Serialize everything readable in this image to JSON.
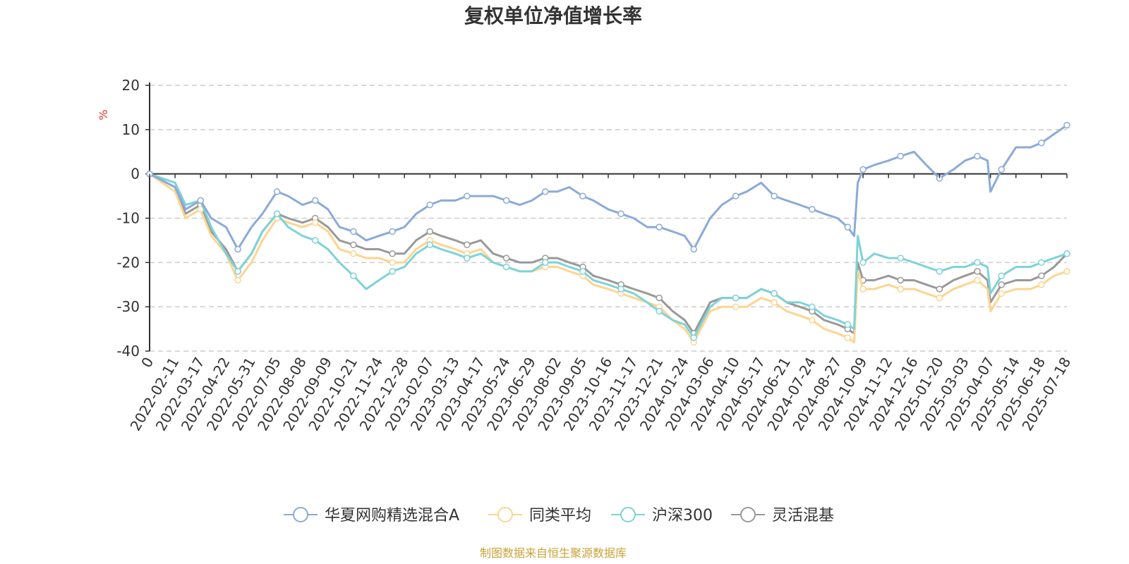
{
  "chart_data": {
    "type": "line",
    "title": "复权单位净值增长率",
    "ylabel": "%",
    "ylim": [
      -40,
      20
    ],
    "yticks": [
      20,
      10,
      0,
      -10,
      -20,
      -30,
      -40
    ],
    "grid": true,
    "legend_position": "bottom",
    "source": "制图数据来自恒生聚源数据库",
    "x_tick_labels": [
      "0",
      "2022-02-11",
      "2022-03-17",
      "2022-04-22",
      "2022-05-31",
      "2022-07-05",
      "2022-08-08",
      "2022-09-09",
      "2022-10-21",
      "2022-11-24",
      "2022-12-28",
      "2023-02-07",
      "2023-03-13",
      "2023-04-17",
      "2023-05-24",
      "2023-06-29",
      "2023-08-02",
      "2023-09-05",
      "2023-10-16",
      "2023-11-17",
      "2023-12-21",
      "2024-01-24",
      "2024-03-06",
      "2024-04-10",
      "2024-05-17",
      "2024-06-21",
      "2024-07-24",
      "2024-08-27",
      "2024-10-09",
      "2024-11-12",
      "2024-12-16",
      "2025-01-20",
      "2025-03-03",
      "2025-04-07",
      "2025-05-14",
      "2025-06-18",
      "2025-07-18"
    ],
    "x_points": [
      "0",
      "2022-02-11",
      "2022-02-25",
      "2022-03-17",
      "2022-04-01",
      "2022-04-22",
      "2022-05-10",
      "2022-05-31",
      "2022-06-15",
      "2022-07-05",
      "2022-07-20",
      "2022-08-08",
      "2022-08-24",
      "2022-09-09",
      "2022-09-28",
      "2022-10-21",
      "2022-11-07",
      "2022-11-24",
      "2022-12-12",
      "2022-12-28",
      "2023-01-16",
      "2023-02-07",
      "2023-02-22",
      "2023-03-13",
      "2023-03-29",
      "2023-04-17",
      "2023-05-05",
      "2023-05-24",
      "2023-06-12",
      "2023-06-29",
      "2023-07-17",
      "2023-08-02",
      "2023-08-18",
      "2023-09-05",
      "2023-09-22",
      "2023-10-16",
      "2023-11-01",
      "2023-11-17",
      "2023-12-05",
      "2023-12-21",
      "2024-01-08",
      "2024-01-24",
      "2024-02-08",
      "2024-03-06",
      "2024-03-22",
      "2024-04-10",
      "2024-04-26",
      "2024-05-17",
      "2024-06-04",
      "2024-06-21",
      "2024-07-08",
      "2024-07-24",
      "2024-08-09",
      "2024-08-27",
      "2024-09-13",
      "2024-09-24",
      "2024-09-30",
      "2024-10-09",
      "2024-10-24",
      "2024-11-12",
      "2024-11-28",
      "2024-12-16",
      "2025-01-02",
      "2025-01-20",
      "2025-02-12",
      "2025-03-03",
      "2025-03-20",
      "2025-04-03",
      "2025-04-07",
      "2025-04-23",
      "2025-05-14",
      "2025-06-03",
      "2025-06-18",
      "2025-07-03",
      "2025-07-18"
    ],
    "series": [
      {
        "name": "华夏网购精选混合A",
        "color": "#8caad8",
        "values": [
          0,
          -3,
          -8,
          -6,
          -10,
          -12,
          -17,
          -12,
          -9,
          -4,
          -5,
          -7,
          -6,
          -8,
          -12,
          -13,
          -15,
          -14,
          -13,
          -12,
          -9,
          -7,
          -6,
          -6,
          -5,
          -5,
          -5,
          -6,
          -7,
          -6,
          -4,
          -4,
          -3,
          -5,
          -6,
          -8,
          -9,
          -10,
          -12,
          -12,
          -13,
          -14,
          -17,
          -10,
          -7,
          -5,
          -4,
          -2,
          -5,
          -6,
          -7,
          -8,
          -9,
          -10,
          -12,
          -14,
          -2,
          1,
          2,
          3,
          4,
          5,
          2,
          -1,
          1,
          3,
          4,
          3,
          -4,
          1,
          6,
          6,
          7,
          9,
          11
        ]
      },
      {
        "name": "同类平均",
        "color": "#fcd590",
        "values": [
          0,
          -4,
          -10,
          -8,
          -14,
          -18,
          -24,
          -20,
          -15,
          -10,
          -11,
          -12,
          -11,
          -13,
          -17,
          -18,
          -19,
          -19,
          -20,
          -20,
          -17,
          -15,
          -16,
          -17,
          -18,
          -17,
          -20,
          -21,
          -22,
          -22,
          -21,
          -21,
          -22,
          -23,
          -25,
          -26,
          -27,
          -28,
          -29,
          -30,
          -33,
          -35,
          -38,
          -31,
          -30,
          -30,
          -30,
          -28,
          -29,
          -31,
          -32,
          -33,
          -35,
          -36,
          -37,
          -38,
          -22,
          -26,
          -26,
          -25,
          -26,
          -26,
          -27,
          -28,
          -26,
          -25,
          -24,
          -26,
          -31,
          -27,
          -26,
          -26,
          -25,
          -23,
          -22
        ]
      },
      {
        "name": "沪深300",
        "color": "#7dd3d8",
        "values": [
          0,
          -2,
          -7,
          -6,
          -12,
          -18,
          -22,
          -18,
          -13,
          -9,
          -12,
          -14,
          -15,
          -17,
          -20,
          -23,
          -26,
          -24,
          -22,
          -21,
          -18,
          -16,
          -17,
          -18,
          -19,
          -18,
          -20,
          -21,
          -22,
          -22,
          -20,
          -20,
          -21,
          -22,
          -24,
          -25,
          -26,
          -27,
          -29,
          -31,
          -33,
          -34,
          -37,
          -30,
          -28,
          -28,
          -28,
          -26,
          -27,
          -29,
          -29,
          -30,
          -32,
          -33,
          -34,
          -35,
          -14,
          -20,
          -18,
          -19,
          -19,
          -20,
          -21,
          -22,
          -21,
          -21,
          -20,
          -21,
          -27,
          -23,
          -21,
          -21,
          -20,
          -19,
          -18
        ]
      },
      {
        "name": "灵活混基",
        "color": "#999999",
        "values": [
          0,
          -3,
          -9,
          -7,
          -13,
          -17,
          -22,
          -18,
          -13,
          -9,
          -10,
          -11,
          -10,
          -12,
          -15,
          -16,
          -17,
          -17,
          -18,
          -18,
          -15,
          -13,
          -14,
          -15,
          -16,
          -15,
          -18,
          -19,
          -20,
          -20,
          -19,
          -19,
          -20,
          -21,
          -23,
          -24,
          -25,
          -26,
          -27,
          -28,
          -31,
          -33,
          -36,
          -29,
          -28,
          -28,
          -28,
          -26,
          -27,
          -29,
          -30,
          -31,
          -33,
          -34,
          -35,
          -36,
          -20,
          -24,
          -24,
          -23,
          -24,
          -24,
          -25,
          -26,
          -24,
          -23,
          -22,
          -24,
          -29,
          -25,
          -24,
          -24,
          -23,
          -21,
          -18
        ]
      }
    ]
  }
}
